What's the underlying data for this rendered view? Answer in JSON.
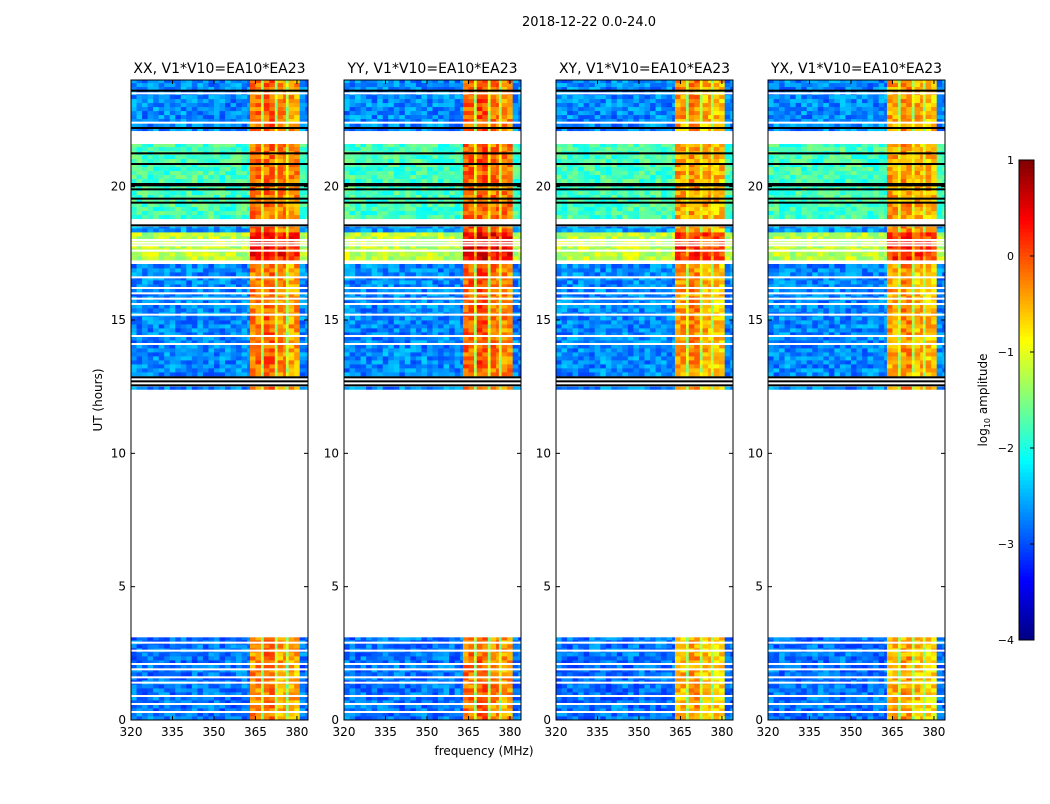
{
  "chart_data": {
    "type": "heatmap",
    "title": "2018-12-22 0.0-24.0",
    "xlabel": "frequency (MHz)",
    "ylabel": "UT (hours)",
    "xlim": [
      320,
      384
    ],
    "ylim": [
      0,
      24
    ],
    "xticks": [
      "320",
      "335",
      "350",
      "365",
      "380"
    ],
    "xtick_values": [
      320,
      335,
      350,
      365,
      380
    ],
    "yticks": [
      "0",
      "5",
      "10",
      "15",
      "20"
    ],
    "ytick_values": [
      0,
      5,
      10,
      15,
      20
    ],
    "panels": [
      {
        "title": "XX, V1*V10=EA10*EA23",
        "rfi_boost": 0.2
      },
      {
        "title": "YY, V1*V10=EA10*EA23",
        "rfi_boost": 0.3
      },
      {
        "title": "XY, V1*V10=EA10*EA23",
        "rfi_boost": 0.0
      },
      {
        "title": "YX, V1*V10=EA10*EA23",
        "rfi_boost": 0.0
      }
    ],
    "time_segments": [
      {
        "t0": 0.0,
        "t1": 3.1,
        "level": -2.8
      },
      {
        "t0": 12.4,
        "t1": 12.5,
        "level": -2.7
      },
      {
        "t0": 12.9,
        "t1": 17.1,
        "level": -2.7
      },
      {
        "t0": 17.25,
        "t1": 18.3,
        "level": -1.2
      },
      {
        "t0": 18.3,
        "t1": 18.5,
        "level": -2.6
      },
      {
        "t0": 18.8,
        "t1": 21.6,
        "level": -1.8
      },
      {
        "t0": 22.1,
        "t1": 24.0,
        "level": -2.7
      }
    ],
    "flagged_lines_hours": [
      0.3,
      0.6,
      0.9,
      1.4,
      1.6,
      1.9,
      2.1,
      2.6,
      2.9,
      14.1,
      14.4,
      15.2,
      15.6,
      15.8,
      16.0,
      16.2,
      16.6,
      17.6,
      17.8,
      17.9,
      18.0,
      22.4,
      23.5
    ],
    "black_lines_hours": [
      12.55,
      12.7,
      12.85,
      18.55,
      19.4,
      19.55,
      19.9,
      20.05,
      20.1,
      20.85,
      21.25,
      22.2,
      23.6
    ],
    "frequency_bands": [
      {
        "f0": 320,
        "f1": 363,
        "offset": 0.0
      },
      {
        "f0": 363,
        "f1": 367,
        "offset": 2.3
      },
      {
        "f0": 367,
        "f1": 368,
        "offset": 1.5
      },
      {
        "f0": 368,
        "f1": 372,
        "offset": 2.4
      },
      {
        "f0": 372,
        "f1": 373,
        "offset": 1.5
      },
      {
        "f0": 373,
        "f1": 376,
        "offset": 2.2
      },
      {
        "f0": 376,
        "f1": 377,
        "offset": 1.4
      },
      {
        "f0": 377,
        "f1": 381,
        "offset": 2.1
      },
      {
        "f0": 381,
        "f1": 384,
        "offset": 0.0
      }
    ],
    "colorbar": {
      "label": "log10 amplitude",
      "label_main": "log",
      "label_sub": "10",
      "label_rest": " amplitude",
      "range": [
        -4,
        1
      ],
      "ticks": [
        "1",
        "0",
        "−1",
        "−2",
        "−3",
        "−4"
      ],
      "tick_values": [
        1,
        0,
        -1,
        -2,
        -3,
        -4
      ],
      "colormap": "jet"
    }
  }
}
